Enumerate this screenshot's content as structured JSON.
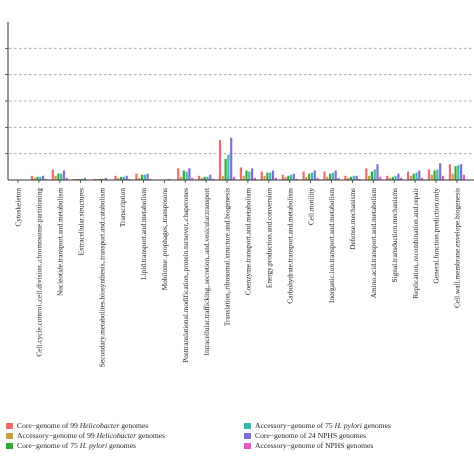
{
  "chart_data": {
    "type": "bar",
    "grid": true,
    "ylim": [
      0,
      150
    ],
    "gridlines": [
      25,
      50,
      75,
      100,
      125
    ],
    "categories": [
      "Cytoskeleton",
      "Cell.cycle.control.,cell.division.,chromosome.partitioning",
      "Nucleotide.transport.and.metabolism",
      "Extracellular.structures",
      "Secondary.metabolites.biosynthesis,.transport.and.catabolism",
      "Transcription",
      "Lipid.transport.and.metabolism",
      "Mobilome:.prophages,.transposons",
      "Posttranslational.modification,.protein.turnover,.chaperones",
      "Intracellular.trafficking,.secretion,.and.vesicular.transport",
      "Translation,.ribosomal.structure.and.biogenesis",
      "Coenzyme.transport.and.metabolism",
      "Energy.production.and.conversion",
      "Carbohydrate.transport.and.metabolism",
      "Cell.motility",
      "Inorganic.ion.transport.and.metabolism",
      "Defense.mechanisms",
      "Amino.acid.transport.and.metabolism",
      "Signal.transduction.mechanisms",
      "Replication,.recombination.and.repair",
      "General.function.prediction.only",
      "Cell.wall.membrane.envelope.biogenesis"
    ],
    "series": [
      {
        "name": "Core−genome of 99 Helicobacter genomes",
        "color": "#ef6b6b",
        "values": [
          0,
          4,
          10,
          1,
          1,
          4,
          6,
          0,
          11,
          4,
          38,
          12,
          8,
          5,
          8,
          8,
          4,
          11,
          4,
          8,
          10,
          15
        ]
      },
      {
        "name": "Accessory−genome of 99 Helicobacter genomes",
        "color": "#c4a24a",
        "values": [
          0,
          2,
          4,
          1,
          1,
          2,
          2,
          0,
          3,
          2,
          4,
          4,
          4,
          3,
          3,
          3,
          2,
          4,
          2,
          4,
          5,
          6
        ]
      },
      {
        "name": "Core−genome of 75 H. pylori genomes",
        "color": "#3aa63a",
        "values": [
          0,
          3,
          6,
          1,
          1,
          3,
          5,
          0,
          9,
          3,
          20,
          9,
          7,
          4,
          6,
          6,
          3,
          8,
          3,
          6,
          9,
          13
        ]
      },
      {
        "name": "Accessory−genome of 75 H. pylori genomes",
        "color": "#3fb8b0",
        "values": [
          0,
          3,
          6,
          1,
          1,
          3,
          5,
          0,
          8,
          3,
          24,
          8,
          7,
          5,
          7,
          7,
          4,
          10,
          4,
          7,
          10,
          14
        ]
      },
      {
        "name": "Core−genome of 24 NPHS genomes",
        "color": "#7a72d6",
        "values": [
          0,
          4,
          9,
          2,
          2,
          4,
          6,
          1,
          11,
          5,
          40,
          11,
          9,
          6,
          9,
          9,
          4,
          15,
          6,
          9,
          16,
          15
        ]
      },
      {
        "name": "Accessory−genome of NPHS genomes",
        "color": "#e05cc4",
        "values": [
          0,
          1,
          2,
          0,
          0,
          1,
          1,
          0,
          2,
          1,
          3,
          2,
          2,
          1,
          2,
          2,
          1,
          3,
          2,
          2,
          4,
          5
        ]
      }
    ]
  },
  "legend": [
    {
      "pre": "Core−genome of 99 ",
      "em": "Helicobacter",
      "post": " genomes"
    },
    {
      "pre": "Accessory−genome of 99 ",
      "em": "Helicobacter",
      "post": " genomes"
    },
    {
      "pre": "Core−genome of 75 ",
      "em": "H. pylori",
      "post": " genomes"
    },
    {
      "pre": "Accessory−genome of 75 ",
      "em": "H. pylori",
      "post": " genomes"
    },
    {
      "pre": "Core−genome of 24 NPHS genomes",
      "em": "",
      "post": ""
    },
    {
      "pre": "Accessory−genome of NPHS genomes",
      "em": "",
      "post": ""
    }
  ]
}
